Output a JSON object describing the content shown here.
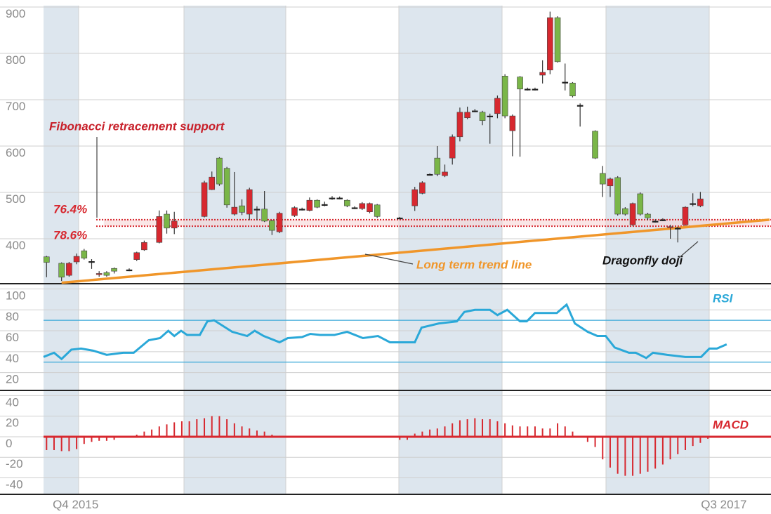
{
  "chart_data": [
    {
      "type": "candlestick",
      "up_color": "#7ab648",
      "down_color": "#d7282f",
      "doji_color": "#222222",
      "grid": true,
      "xlim": [
        -0.4,
        96.4
      ],
      "ylim": [
        303,
        903
      ],
      "yticks": [
        400,
        500,
        600,
        700,
        800,
        900
      ],
      "xticks": [
        {
          "value": 2,
          "label": "Q4 2015"
        },
        {
          "value": 92,
          "label": "Q3 2017"
        }
      ],
      "x": [
        0,
        2,
        3,
        4,
        5,
        6,
        7,
        8,
        9,
        11,
        12,
        13,
        15,
        16,
        17,
        21,
        22,
        23,
        24,
        25,
        26,
        27,
        28,
        29,
        30,
        31,
        33,
        34,
        35,
        36,
        37,
        38,
        39,
        40,
        41,
        42,
        43,
        44,
        47,
        49,
        50,
        51,
        52,
        53,
        54,
        55,
        56,
        57,
        58,
        59,
        60,
        61,
        62,
        63,
        64,
        65,
        66,
        67,
        68,
        69,
        70,
        71,
        73,
        74,
        75,
        76,
        77,
        78,
        79,
        80,
        81,
        82,
        83,
        84,
        85,
        86,
        87
      ],
      "open": [
        349,
        317,
        347,
        362,
        358,
        351,
        325,
        321,
        330,
        333,
        370,
        392,
        448,
        423,
        438,
        521,
        533,
        518,
        473,
        468,
        457,
        506,
        464,
        438,
        418,
        455,
        467,
        464,
        483,
        468,
        474,
        488,
        488,
        471,
        467,
        476,
        476,
        448,
        445,
        506,
        521,
        539,
        539,
        544,
        620,
        673,
        673,
        676,
        655,
        665,
        703,
        665,
        665,
        723,
        723,
        723,
        759,
        877,
        782,
        738,
        708,
        688,
        574,
        518,
        529,
        453,
        453,
        476,
        453,
        445,
        438,
        441,
        426,
        423,
        468,
        476,
        486
      ],
      "high": [
        363,
        349,
        350,
        368,
        378,
        356,
        330,
        330,
        338,
        336,
        372,
        396,
        461,
        461,
        458,
        525,
        545,
        576,
        555,
        544,
        485,
        510,
        470,
        503,
        441,
        458,
        470,
        467,
        489,
        485,
        480,
        492,
        491,
        485,
        470,
        479,
        478,
        475,
        447,
        512,
        524,
        541,
        600,
        560,
        625,
        683,
        685,
        680,
        676,
        670,
        709,
        755,
        668,
        751,
        726,
        726,
        785,
        890,
        880,
        778,
        738,
        692,
        634,
        557,
        532,
        535,
        468,
        478,
        500,
        456,
        442,
        444,
        430,
        426,
        470,
        498,
        501
      ],
      "low": [
        317,
        309,
        318,
        345,
        355,
        335,
        318,
        318,
        325,
        330,
        352,
        374,
        390,
        411,
        410,
        446,
        505,
        514,
        467,
        450,
        451,
        440,
        440,
        436,
        408,
        412,
        447,
        461,
        459,
        466,
        470,
        484,
        485,
        468,
        464,
        462,
        455,
        445,
        443,
        460,
        496,
        537,
        535,
        533,
        560,
        610,
        658,
        673,
        645,
        605,
        660,
        660,
        578,
        577,
        720,
        720,
        735,
        755,
        780,
        720,
        705,
        642,
        572,
        490,
        490,
        450,
        450,
        428,
        450,
        440,
        435,
        438,
        400,
        392,
        428,
        470,
        468
      ],
      "close": [
        361,
        347,
        321,
        350,
        374,
        351,
        323,
        327,
        336,
        333,
        355,
        376,
        392,
        453,
        423,
        448,
        506,
        574,
        552,
        453,
        471,
        453,
        464,
        464,
        439,
        415,
        450,
        464,
        461,
        483,
        474,
        488,
        488,
        483,
        467,
        465,
        458,
        473,
        445,
        471,
        498,
        539,
        574,
        536,
        574,
        620,
        661,
        676,
        673,
        665,
        670,
        751,
        633,
        749,
        723,
        723,
        753,
        764,
        877,
        738,
        736,
        688,
        632,
        541,
        514,
        532,
        465,
        430,
        497,
        453,
        438,
        441,
        424,
        423,
        430,
        476,
        471
      ],
      "trend_line": {
        "label": "Long term trend line",
        "color": "#f0962a",
        "x": [
          2,
          96.2
        ],
        "values": [
          305,
          441
        ]
      },
      "fibonacci": {
        "label": "Fibonacci retracement support",
        "color": "#d7282f",
        "levels": [
          {
            "value": 441,
            "label": "76.4%"
          },
          {
            "value": 427,
            "label": "78.6%"
          }
        ]
      },
      "annotation": "Dragonfly doji"
    },
    {
      "type": "line",
      "xlim": [
        -0.4,
        96.4
      ],
      "ylim": [
        3,
        105
      ],
      "yticks": [
        20,
        40,
        60,
        80,
        100
      ],
      "bands": [
        70,
        30
      ],
      "band_color": "#3aa9d9",
      "series": [
        {
          "name": "RSI",
          "color": "#2aa8d8",
          "x": [
            -0.4,
            1,
            2,
            3.3,
            4.6,
            6.2,
            8,
            10.2,
            11.6,
            13.6,
            15.1,
            16.2,
            17,
            17.9,
            18.7,
            20.4,
            21.4,
            22.3,
            24.7,
            26.7,
            27.7,
            28.9,
            31,
            32.1,
            34,
            35.1,
            36.4,
            38.3,
            40,
            42.1,
            44.1,
            45.7,
            49,
            49.9,
            52.2,
            54.6,
            55.6,
            57,
            59,
            60,
            61.3,
            63,
            63.9,
            65,
            67.9,
            69.2,
            70.3,
            72,
            73.3,
            74.4,
            75.6,
            77.5,
            78.4,
            79.8,
            80.7,
            82.6,
            85,
            87.1,
            88.2,
            89.2,
            90.5
          ],
          "values": [
            35,
            39,
            33,
            42,
            43,
            41,
            37,
            39,
            39,
            51,
            53,
            60,
            55,
            60,
            56,
            56,
            69,
            70,
            59,
            55,
            60,
            55,
            49,
            53,
            54,
            57,
            56,
            56,
            59,
            53,
            55,
            49,
            49,
            63,
            67,
            69,
            78,
            80,
            80,
            75,
            80,
            69,
            69,
            77,
            77,
            85,
            67,
            59,
            55,
            55,
            44,
            39,
            39,
            34,
            39,
            37,
            35,
            35,
            43,
            43,
            47
          ]
        }
      ]
    },
    {
      "type": "bar",
      "xlim": [
        -0.4,
        96.4
      ],
      "ylim": [
        -56,
        45
      ],
      "yticks": [
        40,
        20,
        0,
        -20,
        -40
      ],
      "series": [
        {
          "name": "MACD",
          "color": "#d7282f",
          "x": [
            0,
            1,
            2,
            3,
            4,
            5,
            6,
            7,
            8,
            9,
            10,
            11,
            12,
            13,
            14,
            15,
            16,
            17,
            18,
            19,
            20,
            21,
            22,
            23,
            24,
            25,
            26,
            27,
            28,
            29,
            30,
            31,
            32,
            33,
            34,
            35,
            36,
            37,
            38,
            39,
            40,
            41,
            42,
            43,
            44,
            45,
            46,
            47,
            48,
            49,
            50,
            51,
            52,
            53,
            54,
            55,
            56,
            57,
            58,
            59,
            60,
            61,
            62,
            63,
            64,
            65,
            66,
            67,
            68,
            69,
            70,
            71,
            72,
            73,
            74,
            75,
            76,
            77,
            78,
            79,
            80,
            81,
            82,
            83,
            84,
            85,
            86,
            87,
            88
          ],
          "values": [
            -13,
            -13,
            -14,
            -14,
            -12,
            -7,
            -5,
            -4,
            -4,
            -3,
            -1,
            0,
            2,
            5,
            7,
            10,
            12,
            14,
            15,
            15,
            17,
            18,
            20,
            20,
            17,
            13,
            10,
            8,
            6,
            5,
            2,
            1,
            0,
            -1,
            0,
            0,
            0,
            0,
            0,
            0,
            0,
            0,
            0,
            0,
            0,
            0,
            -1,
            -3,
            -3,
            3,
            5,
            7,
            8,
            10,
            13,
            16,
            17,
            18,
            17,
            17,
            15,
            13,
            11,
            10,
            10,
            10,
            8,
            8,
            13,
            10,
            5,
            0,
            -5,
            -10,
            -22,
            -30,
            -36,
            -38,
            -38,
            -36,
            -34,
            -31,
            -27,
            -22,
            -17,
            -13,
            -9,
            -6,
            -2
          ]
        }
      ]
    }
  ]
}
